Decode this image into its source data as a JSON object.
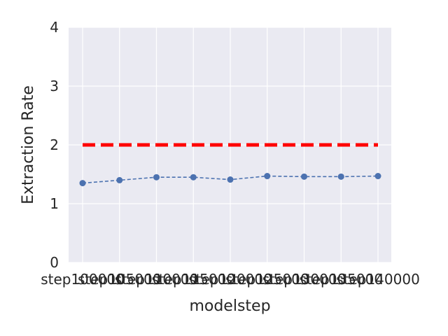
{
  "chart_data": {
    "type": "line",
    "title": "",
    "xlabel": "modelstep",
    "ylabel": "Extraction Rate",
    "ylim": [
      0,
      4
    ],
    "yticks": [
      "0",
      "1",
      "2",
      "3",
      "4"
    ],
    "grid": true,
    "categories": [
      "step100000",
      "step105000",
      "step110000",
      "step115000",
      "step120000",
      "step125000",
      "step130000",
      "step135000",
      "step140000"
    ],
    "series": [
      {
        "values": [
          1.35,
          1.4,
          1.45,
          1.45,
          1.41,
          1.47,
          1.46,
          1.46,
          1.47
        ],
        "color": "#4c72b0",
        "style": "dashed-with-markers"
      }
    ],
    "reference_line": {
      "y": 2.0,
      "color": "#ff0000",
      "style": "dashed"
    },
    "colors": {
      "plot_background": "#eaeaf2",
      "grid": "#ffffff"
    }
  }
}
